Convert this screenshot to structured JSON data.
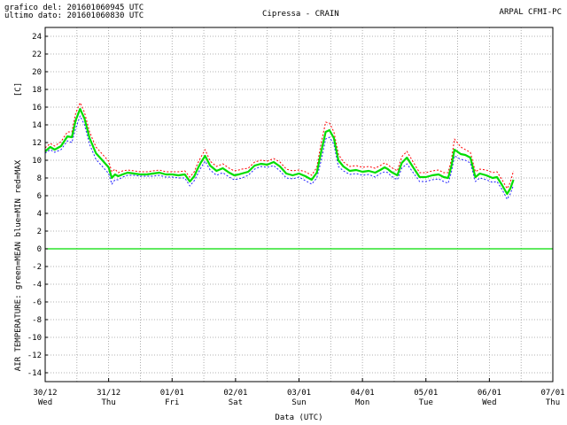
{
  "header": {
    "line1_label": "grafico del:",
    "line1_value": "201601060945 UTC",
    "line2_label": "ultimo dato:",
    "line2_value": "201601060830 UTC",
    "title": "Cipressa - CRAIN",
    "org": "ARPAL CFMI-PC"
  },
  "chart_data": {
    "type": "line",
    "title": "Cipressa - CRAIN",
    "xlabel": "Data (UTC)",
    "ylabel": "AIR TEMPERATURE: green=MEAN  blue=MIN  red=MAX",
    "yunit": "[C]",
    "ylim": [
      -15,
      25
    ],
    "yticks": [
      -14,
      -12,
      -10,
      -8,
      -6,
      -4,
      -2,
      0,
      2,
      4,
      6,
      8,
      10,
      12,
      14,
      16,
      18,
      20,
      22,
      24
    ],
    "xlim": [
      0,
      8
    ],
    "x_unit_note": "days since 30/12",
    "xticks": [
      {
        "date": "30/12",
        "day": "Wed"
      },
      {
        "date": "31/12",
        "day": "Thu"
      },
      {
        "date": "01/01",
        "day": "Fri"
      },
      {
        "date": "02/01",
        "day": "Sat"
      },
      {
        "date": "03/01",
        "day": "Sun"
      },
      {
        "date": "04/01",
        "day": "Mon"
      },
      {
        "date": "05/01",
        "day": "Tue"
      },
      {
        "date": "06/01",
        "day": "Wed"
      },
      {
        "date": "07/01",
        "day": "Thu"
      }
    ],
    "grid": true,
    "zero_line": true,
    "x": [
      0.0,
      0.08,
      0.15,
      0.25,
      0.35,
      0.42,
      0.48,
      0.55,
      0.62,
      0.7,
      0.8,
      0.9,
      1.0,
      1.05,
      1.1,
      1.15,
      1.22,
      1.3,
      1.4,
      1.5,
      1.6,
      1.7,
      1.8,
      1.9,
      2.0,
      2.1,
      2.2,
      2.28,
      2.35,
      2.4,
      2.45,
      2.52,
      2.6,
      2.7,
      2.8,
      2.9,
      2.98,
      3.05,
      3.1,
      3.2,
      3.3,
      3.4,
      3.5,
      3.6,
      3.7,
      3.8,
      3.9,
      4.0,
      4.1,
      4.2,
      4.28,
      4.35,
      4.42,
      4.48,
      4.55,
      4.62,
      4.7,
      4.8,
      4.9,
      5.0,
      5.1,
      5.2,
      5.28,
      5.35,
      5.4,
      5.45,
      5.55,
      5.62,
      5.7,
      5.8,
      5.9,
      6.0,
      6.1,
      6.2,
      6.28,
      6.35,
      6.4,
      6.45,
      6.55,
      6.62,
      6.7,
      6.78,
      6.85,
      6.95,
      7.05,
      7.12,
      7.2,
      7.28,
      7.33,
      7.38
    ],
    "series": [
      {
        "name": "MEAN",
        "color": "#00dd00",
        "values": [
          11.0,
          11.5,
          11.2,
          11.6,
          12.7,
          12.6,
          14.5,
          15.8,
          14.7,
          12.5,
          10.8,
          10.0,
          9.2,
          8.0,
          8.4,
          8.2,
          8.4,
          8.6,
          8.5,
          8.4,
          8.4,
          8.5,
          8.6,
          8.4,
          8.4,
          8.3,
          8.4,
          7.6,
          8.2,
          9.0,
          9.7,
          10.5,
          9.4,
          8.8,
          9.1,
          8.6,
          8.3,
          8.4,
          8.5,
          8.7,
          9.4,
          9.6,
          9.5,
          9.8,
          9.3,
          8.5,
          8.3,
          8.5,
          8.2,
          7.8,
          8.6,
          11.0,
          13.2,
          13.4,
          12.5,
          10.0,
          9.3,
          8.8,
          8.9,
          8.7,
          8.8,
          8.6,
          8.9,
          9.2,
          9.0,
          8.7,
          8.3,
          9.7,
          10.3,
          9.2,
          8.1,
          8.1,
          8.3,
          8.4,
          8.1,
          8.0,
          9.3,
          11.2,
          10.7,
          10.6,
          10.3,
          8.1,
          8.5,
          8.3,
          8.0,
          8.1,
          7.2,
          6.2,
          6.8,
          7.8
        ]
      },
      {
        "name": "MIN",
        "color": "#2222ff",
        "values": [
          10.8,
          11.2,
          10.9,
          11.2,
          12.2,
          12.0,
          13.6,
          15.0,
          14.0,
          11.8,
          10.1,
          9.3,
          8.5,
          7.3,
          7.8,
          7.8,
          8.1,
          8.3,
          8.3,
          8.2,
          8.2,
          8.2,
          8.3,
          8.1,
          8.1,
          8.0,
          8.0,
          7.1,
          7.7,
          8.4,
          9.1,
          9.9,
          8.9,
          8.3,
          8.6,
          8.1,
          7.8,
          7.9,
          8.0,
          8.3,
          9.0,
          9.3,
          9.2,
          9.4,
          8.8,
          8.0,
          7.9,
          8.1,
          7.7,
          7.3,
          8.0,
          10.0,
          12.4,
          12.6,
          11.8,
          9.3,
          8.8,
          8.4,
          8.5,
          8.3,
          8.4,
          8.1,
          8.5,
          8.7,
          8.6,
          8.2,
          7.8,
          9.1,
          9.6,
          8.6,
          7.6,
          7.6,
          7.8,
          7.9,
          7.6,
          7.4,
          8.6,
          10.5,
          10.1,
          10.0,
          9.7,
          7.6,
          8.0,
          7.8,
          7.5,
          7.6,
          6.7,
          5.6,
          6.2,
          7.2
        ]
      },
      {
        "name": "MAX",
        "color": "#ff0000",
        "values": [
          11.4,
          11.9,
          11.6,
          12.1,
          13.2,
          13.2,
          15.3,
          16.5,
          15.4,
          13.2,
          11.5,
          10.7,
          9.9,
          8.7,
          9.0,
          8.6,
          8.8,
          8.9,
          8.8,
          8.7,
          8.7,
          8.8,
          8.9,
          8.7,
          8.7,
          8.7,
          8.8,
          8.1,
          8.7,
          9.6,
          10.3,
          11.2,
          9.9,
          9.3,
          9.6,
          9.1,
          8.8,
          8.9,
          9.0,
          9.1,
          9.8,
          10.0,
          9.9,
          10.2,
          9.8,
          9.0,
          8.8,
          8.9,
          8.7,
          8.3,
          9.2,
          12.0,
          14.3,
          14.2,
          13.2,
          10.7,
          9.8,
          9.3,
          9.4,
          9.2,
          9.3,
          9.1,
          9.4,
          9.7,
          9.5,
          9.2,
          8.8,
          10.4,
          11.0,
          9.8,
          8.6,
          8.6,
          8.8,
          8.9,
          8.6,
          8.6,
          10.0,
          12.4,
          11.5,
          11.2,
          10.9,
          8.7,
          9.0,
          8.9,
          8.6,
          8.7,
          7.8,
          6.8,
          7.5,
          8.8
        ]
      }
    ]
  }
}
